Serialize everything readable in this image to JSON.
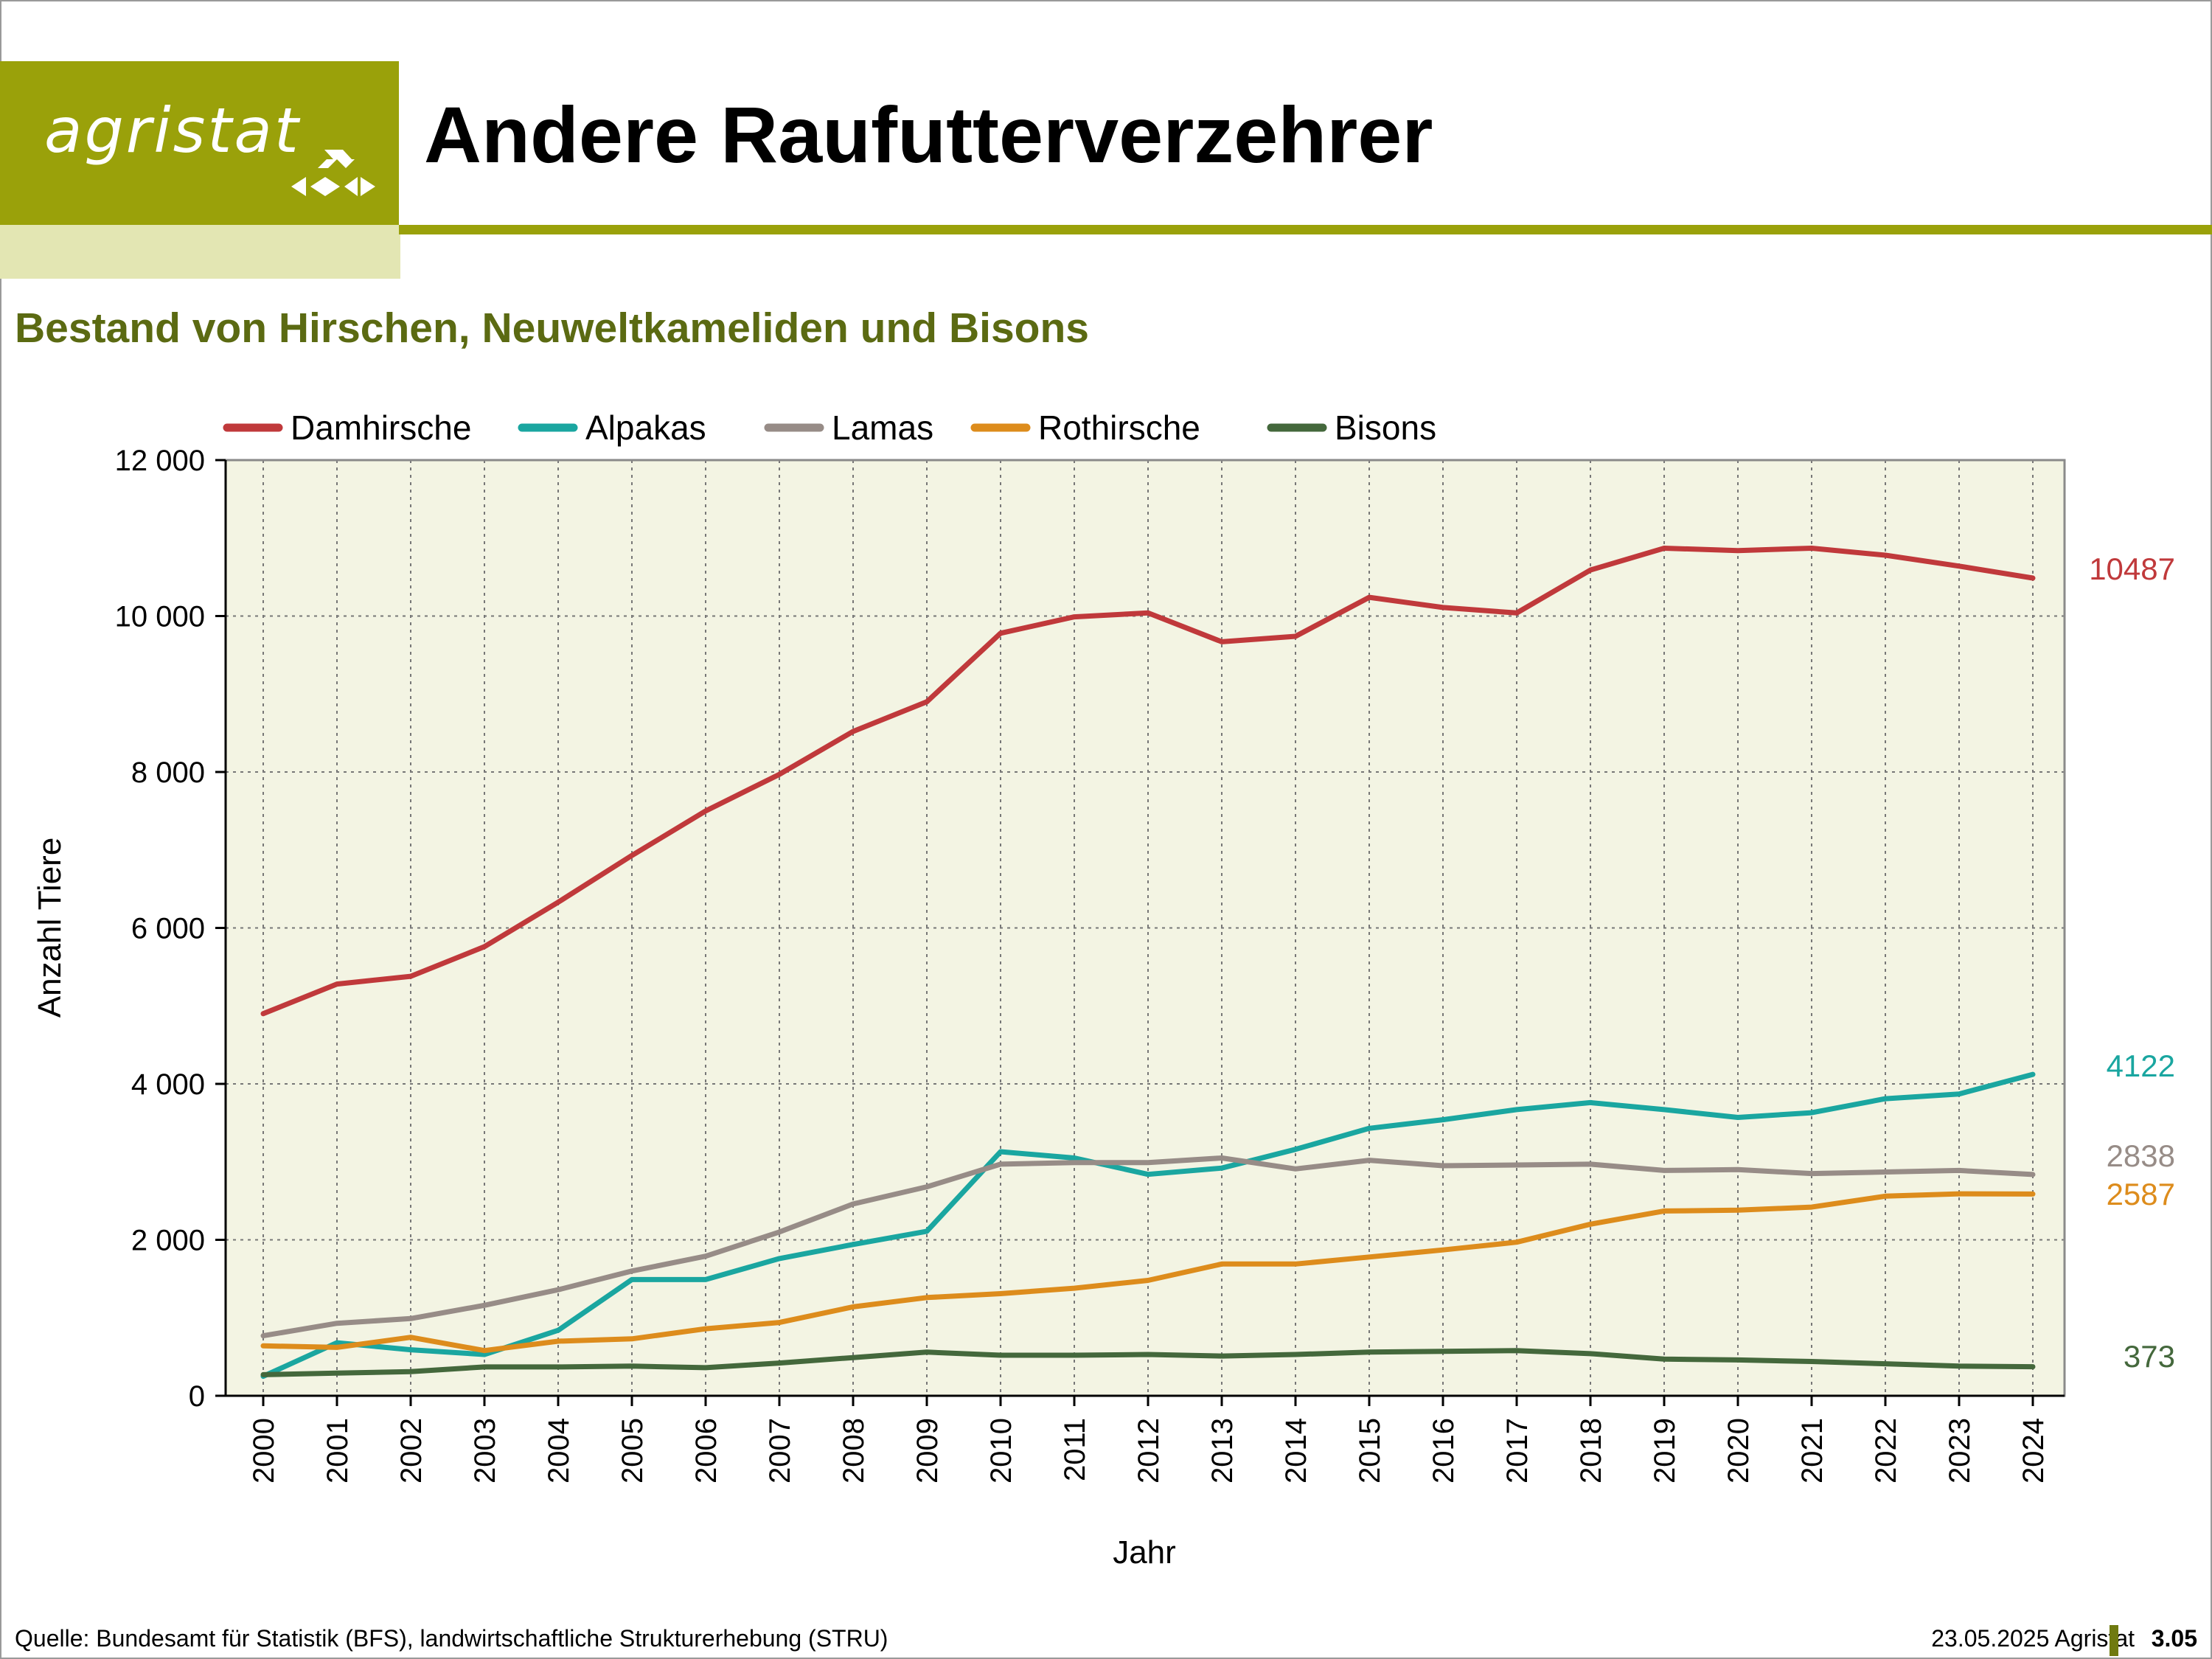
{
  "logo": {
    "text": "agristat"
  },
  "header": {
    "title": "Andere Raufutterverzehrer"
  },
  "footer": {
    "source": "Quelle: Bundesamt für Statistik (BFS), landwirtschaftliche Strukturerhebung (STRU)",
    "date_org": "23.05.2025 Agristat",
    "page": "3.05"
  },
  "colors": {
    "brand": "#9aa10a",
    "plot_bg": "#f3f4e3"
  },
  "chart_data": {
    "type": "line",
    "title": "Bestand von Hirschen, Neuweltkameliden und Bisons",
    "xlabel": "Jahr",
    "ylabel": "Anzahl Tiere",
    "ylim": [
      0,
      12000
    ],
    "yticks": [
      0,
      2000,
      4000,
      6000,
      8000,
      10000,
      12000
    ],
    "ytick_labels": [
      "0",
      "2 000",
      "4 000",
      "6 000",
      "8 000",
      "10 000",
      "12 000"
    ],
    "grid": true,
    "legend_position": "top",
    "categories": [
      "2000",
      "2001",
      "2002",
      "2003",
      "2004",
      "2005",
      "2006",
      "2007",
      "2008",
      "2009",
      "2010",
      "2011",
      "2012",
      "2013",
      "2014",
      "2015",
      "2016",
      "2017",
      "2018",
      "2019",
      "2020",
      "2021",
      "2022",
      "2023",
      "2024"
    ],
    "series": [
      {
        "name": "Damhirsche",
        "color": "#c0393b",
        "end_label": "10487",
        "values": [
          4900,
          5280,
          5380,
          5760,
          6330,
          6930,
          7500,
          7970,
          8520,
          8900,
          9780,
          9990,
          10040,
          9670,
          9740,
          10240,
          10110,
          10040,
          10590,
          10870,
          10840,
          10870,
          10780,
          10640,
          10487
        ]
      },
      {
        "name": "Alpakas",
        "color": "#1aa6a0",
        "end_label": "4122",
        "values": [
          250,
          680,
          590,
          530,
          840,
          1490,
          1490,
          1760,
          1940,
          2110,
          3130,
          3050,
          2840,
          2920,
          3160,
          3430,
          3540,
          3670,
          3760,
          3670,
          3570,
          3630,
          3810,
          3870,
          4122
        ]
      },
      {
        "name": "Lamas",
        "color": "#978c87",
        "end_label": "2838",
        "values": [
          770,
          930,
          990,
          1160,
          1360,
          1600,
          1790,
          2100,
          2460,
          2680,
          2970,
          2990,
          2990,
          3050,
          2910,
          3020,
          2950,
          2960,
          2970,
          2890,
          2900,
          2850,
          2870,
          2890,
          2838
        ]
      },
      {
        "name": "Rothirsche",
        "color": "#dd8c1c",
        "end_label": "2587",
        "values": [
          640,
          620,
          750,
          580,
          700,
          730,
          860,
          940,
          1140,
          1260,
          1310,
          1380,
          1480,
          1690,
          1690,
          1780,
          1870,
          1970,
          2200,
          2370,
          2380,
          2420,
          2560,
          2590,
          2587
        ]
      },
      {
        "name": "Bisons",
        "color": "#44683c",
        "end_label": "373",
        "values": [
          270,
          290,
          310,
          370,
          370,
          380,
          360,
          420,
          490,
          560,
          520,
          520,
          530,
          510,
          530,
          560,
          570,
          580,
          540,
          470,
          460,
          440,
          410,
          380,
          373
        ]
      }
    ]
  }
}
